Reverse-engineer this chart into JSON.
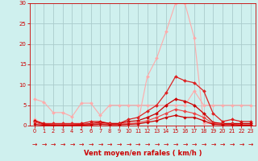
{
  "background_color": "#cff0ee",
  "grid_color": "#aacccc",
  "xlabel": "Vent moyen/en rafales ( km/h )",
  "xlabel_color": "#cc0000",
  "tick_color": "#cc0000",
  "xlim": [
    -0.5,
    23.5
  ],
  "ylim": [
    0,
    30
  ],
  "yticks": [
    0,
    5,
    10,
    15,
    20,
    25,
    30
  ],
  "xticks": [
    0,
    1,
    2,
    3,
    4,
    5,
    6,
    7,
    8,
    9,
    10,
    11,
    12,
    13,
    14,
    15,
    16,
    17,
    18,
    19,
    20,
    21,
    22,
    23
  ],
  "series": [
    {
      "x": [
        0,
        1,
        2,
        3,
        4,
        5,
        6,
        7,
        8,
        9,
        10,
        11,
        12,
        13,
        14,
        15,
        16,
        17,
        18,
        19,
        20,
        21,
        22,
        23
      ],
      "y": [
        6.5,
        5.8,
        3.2,
        3.2,
        2.2,
        5.5,
        5.5,
        2.5,
        5.0,
        5.0,
        5.0,
        5.0,
        5.0,
        5.0,
        5.0,
        5.0,
        5.0,
        8.5,
        5.0,
        5.0,
        5.0,
        5.0,
        5.0,
        5.0
      ],
      "color": "#ffaaaa",
      "lw": 0.8,
      "marker": "D",
      "ms": 2.0
    },
    {
      "x": [
        0,
        1,
        2,
        3,
        4,
        5,
        6,
        7,
        8,
        9,
        10,
        11,
        12,
        13,
        14,
        15,
        16,
        17,
        18,
        19,
        20,
        21,
        22,
        23
      ],
      "y": [
        1.5,
        0.5,
        0.5,
        0.5,
        0.5,
        0.5,
        1.0,
        1.0,
        0.5,
        0.5,
        0.5,
        0.5,
        12.0,
        16.5,
        23.0,
        30.0,
        30.0,
        21.5,
        0.5,
        0.5,
        0.5,
        0.5,
        0.5,
        0.5
      ],
      "color": "#ffaaaa",
      "lw": 0.8,
      "marker": "D",
      "ms": 2.0
    },
    {
      "x": [
        0,
        1,
        2,
        3,
        4,
        5,
        6,
        7,
        8,
        9,
        10,
        11,
        12,
        13,
        14,
        15,
        16,
        17,
        18,
        19,
        20,
        21,
        22,
        23
      ],
      "y": [
        1.2,
        0.5,
        0.5,
        0.5,
        0.5,
        0.5,
        1.0,
        1.0,
        0.5,
        0.5,
        1.5,
        2.0,
        3.5,
        5.0,
        8.0,
        12.0,
        11.0,
        10.5,
        8.5,
        3.0,
        1.0,
        1.5,
        1.0,
        1.0
      ],
      "color": "#dd2222",
      "lw": 0.9,
      "marker": "D",
      "ms": 2.0
    },
    {
      "x": [
        0,
        1,
        2,
        3,
        4,
        5,
        6,
        7,
        8,
        9,
        10,
        11,
        12,
        13,
        14,
        15,
        16,
        17,
        18,
        19,
        20,
        21,
        22,
        23
      ],
      "y": [
        1.2,
        0.3,
        0.2,
        0.2,
        0.2,
        0.3,
        0.5,
        0.8,
        0.5,
        0.5,
        1.0,
        1.2,
        2.0,
        3.0,
        5.0,
        6.5,
        6.0,
        5.0,
        3.0,
        0.8,
        0.5,
        0.5,
        0.5,
        0.5
      ],
      "color": "#cc0000",
      "lw": 0.9,
      "marker": "D",
      "ms": 2.0
    },
    {
      "x": [
        0,
        1,
        2,
        3,
        4,
        5,
        6,
        7,
        8,
        9,
        10,
        11,
        12,
        13,
        14,
        15,
        16,
        17,
        18,
        19,
        20,
        21,
        22,
        23
      ],
      "y": [
        0.8,
        0.2,
        0.1,
        0.1,
        0.1,
        0.2,
        0.3,
        0.5,
        0.3,
        0.3,
        0.5,
        0.7,
        1.2,
        2.0,
        3.0,
        4.0,
        3.5,
        3.0,
        2.0,
        0.5,
        0.3,
        0.3,
        0.2,
        0.2
      ],
      "color": "#ee4444",
      "lw": 0.8,
      "marker": "D",
      "ms": 2.0
    },
    {
      "x": [
        0,
        1,
        2,
        3,
        4,
        5,
        6,
        7,
        8,
        9,
        10,
        11,
        12,
        13,
        14,
        15,
        16,
        17,
        18,
        19,
        20,
        21,
        22,
        23
      ],
      "y": [
        0.3,
        0.1,
        0.05,
        0.05,
        0.05,
        0.1,
        0.2,
        0.3,
        0.2,
        0.2,
        0.3,
        0.4,
        0.8,
        1.2,
        2.0,
        2.5,
        2.0,
        2.0,
        1.2,
        0.3,
        0.2,
        0.2,
        0.1,
        0.1
      ],
      "color": "#cc0000",
      "lw": 0.9,
      "marker": "D",
      "ms": 1.8
    }
  ],
  "arrow_color": "#cc0000",
  "arrow_fontsize": 5.5
}
